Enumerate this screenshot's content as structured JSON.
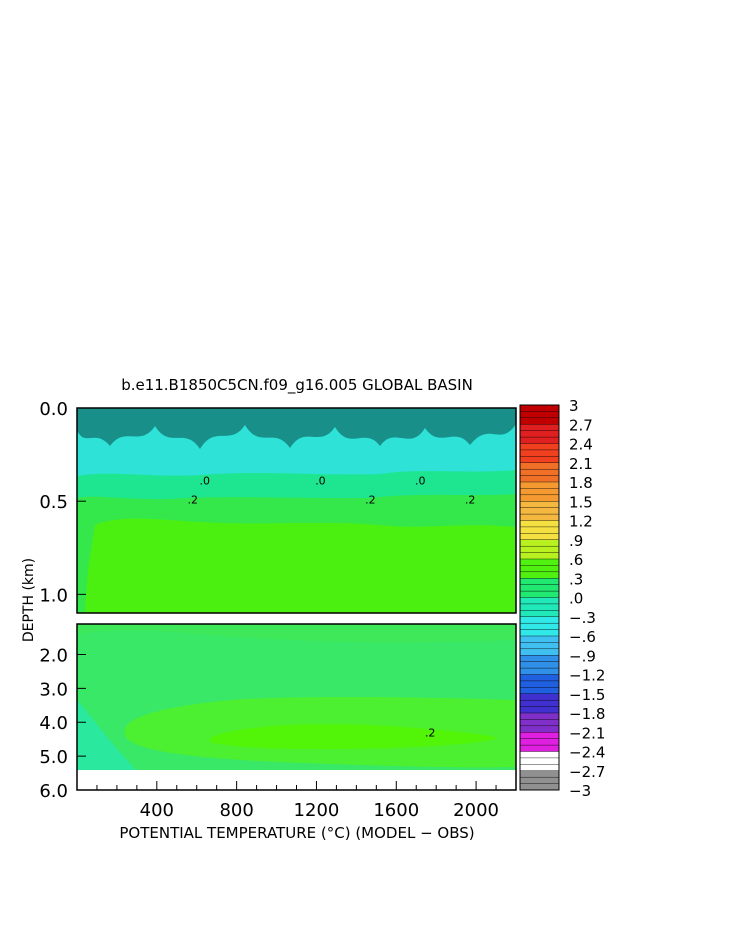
{
  "chart_data": {
    "type": "heatmap",
    "title": "b.e11.B1850C5CN.f09_g16.005 GLOBAL BASIN",
    "xlabel": "POTENTIAL TEMPERATURE (°C) (MODEL − OBS)",
    "ylabel": "DEPTH (km)",
    "xlim": [
      0,
      2200
    ],
    "x_ticks": [
      "400",
      "800",
      "1200",
      "1600",
      "2000"
    ],
    "x_tick_values": [
      400,
      800,
      1200,
      1600,
      2000
    ],
    "upper_panel": {
      "ylim": [
        0.0,
        1.1
      ],
      "y_ticks": [
        "0.0",
        "0.5",
        "1.0"
      ],
      "y_tick_values": [
        0.0,
        0.5,
        1.0
      ]
    },
    "lower_panel": {
      "ylim": [
        1.1,
        6.0
      ],
      "y_ticks": [
        "2.0",
        "3.0",
        "4.0",
        "5.0",
        "6.0"
      ],
      "y_tick_values": [
        2.0,
        3.0,
        4.0,
        5.0,
        6.0
      ]
    },
    "colorbar": {
      "min": -3,
      "max": 3,
      "labels": [
        "3",
        "2.7",
        "2.4",
        "2.1",
        "1.8",
        "1.5",
        "1.2",
        ".9",
        ".6",
        ".3",
        ".0",
        "−.3",
        "−.6",
        "−.9",
        "−1.2",
        "−1.5",
        "−1.8",
        "−2.1",
        "−2.4",
        "−2.7",
        "−3"
      ],
      "label_values": [
        3,
        2.7,
        2.4,
        2.1,
        1.8,
        1.5,
        1.2,
        0.9,
        0.6,
        0.3,
        0.0,
        -0.3,
        -0.6,
        -0.9,
        -1.2,
        -1.5,
        -1.8,
        -2.1,
        -2.4,
        -2.7,
        -3.0
      ]
    },
    "contour_labels": [
      {
        "text": ".0",
        "x": 640,
        "y": 0.39
      },
      {
        "text": ".0",
        "x": 1220,
        "y": 0.39
      },
      {
        "text": ".0",
        "x": 1720,
        "y": 0.39
      },
      {
        "text": ".2",
        "x": 580,
        "y": 0.49
      },
      {
        "text": ".2",
        "x": 1470,
        "y": 0.49
      },
      {
        "text": ".2",
        "x": 1970,
        "y": 0.49
      },
      {
        "text": ".2",
        "x": 1770,
        "y": 4.3
      }
    ],
    "regions": [
      {
        "value": -0.6,
        "depth": [
          0.0,
          0.25
        ],
        "desc": "noisy"
      },
      {
        "value": -0.3,
        "depth": [
          0.25,
          0.32
        ]
      },
      {
        "value": 0.0,
        "depth": [
          0.32,
          0.42
        ]
      },
      {
        "value": 0.1,
        "depth": [
          0.42,
          0.6
        ]
      },
      {
        "value": 0.25,
        "depth": [
          0.6,
          1.1
        ]
      },
      {
        "value": 0.1,
        "depth": [
          1.1,
          2.0
        ]
      },
      {
        "value": 0.1,
        "depth": [
          2.0,
          3.3
        ]
      },
      {
        "value": 0.2,
        "depth": [
          3.3,
          5.3
        ]
      },
      {
        "value": 0.3,
        "depth": [
          4.1,
          4.8
        ]
      },
      {
        "value": 0.0,
        "depth": [
          4.9,
          5.4
        ],
        "desc": "lower-left"
      }
    ],
    "colors": {
      "cool": "#2ef0e0",
      "neutral": "#20e888",
      "light_green": "#3cf04a",
      "mid_green": "#38e866",
      "bright_green": "#4cf010",
      "bottom_white": "#ffffff"
    }
  }
}
